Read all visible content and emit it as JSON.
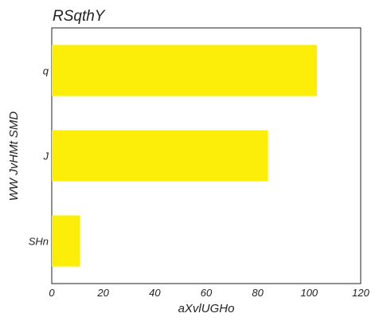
{
  "chart_data": {
    "type": "bar",
    "orientation": "horizontal",
    "title": "RSqthY",
    "xlabel": "aXvlUGHo",
    "ylabel": "WW JvHMt SMD",
    "categories": [
      "q",
      "J",
      "SHn"
    ],
    "values": [
      103,
      84,
      11
    ],
    "xlim": [
      0,
      120
    ],
    "xticks": [
      0,
      20,
      40,
      60,
      80,
      100,
      120
    ],
    "grid": false,
    "bar_color": "#fcee09"
  }
}
